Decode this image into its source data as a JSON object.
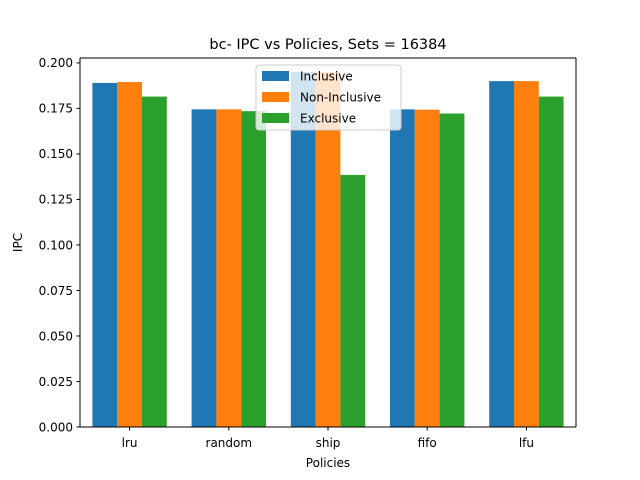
{
  "chart_data": {
    "type": "bar",
    "title": "bc- IPC vs Policies, Sets = 16384",
    "xlabel": "Policies",
    "ylabel": "IPC",
    "categories": [
      "lru",
      "random",
      "ship",
      "fifo",
      "lfu"
    ],
    "series": [
      {
        "name": "Inclusive",
        "color": "#1f77b4",
        "values": [
          0.189,
          0.1745,
          0.195,
          0.1745,
          0.19
        ]
      },
      {
        "name": "Non-Inclusive",
        "color": "#ff7f0e",
        "values": [
          0.1895,
          0.1745,
          0.195,
          0.1743,
          0.19
        ]
      },
      {
        "name": "Exclusive",
        "color": "#2ca02c",
        "values": [
          0.1815,
          0.1735,
          0.1385,
          0.1722,
          0.1815
        ]
      }
    ],
    "ylim": [
      0,
      0.2
    ],
    "yticks": [
      "0.000",
      "0.025",
      "0.050",
      "0.075",
      "0.100",
      "0.125",
      "0.150",
      "0.175",
      "0.200"
    ],
    "legend": "top-center",
    "grid": false
  }
}
